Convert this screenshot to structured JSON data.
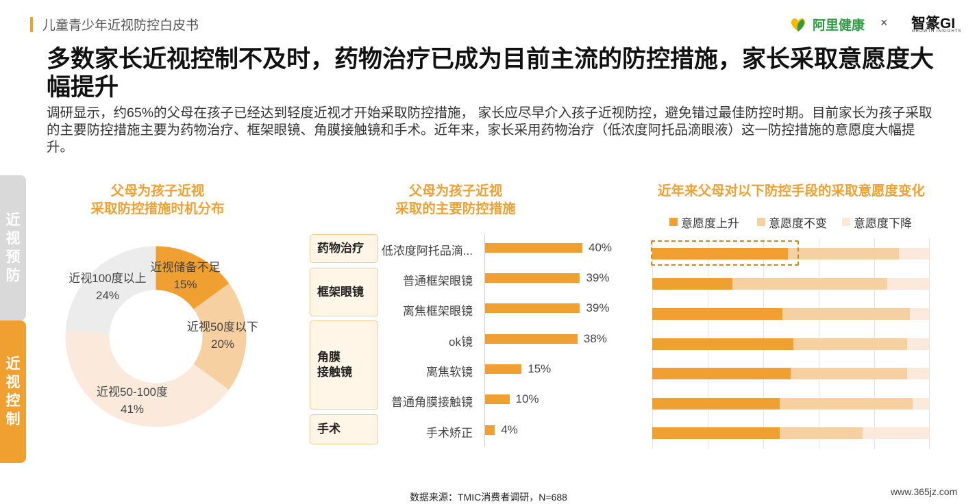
{
  "header": {
    "doc_title": "儿童青少年近视防控白皮书",
    "brand_name": "阿里健康",
    "brand_separator": "×",
    "brand2_name": "智篆GI",
    "brand2_sub": "GROWTH INSIGHTS"
  },
  "headline": "多数家长近视控制不及时，药物治疗已成为目前主流的防控措施，家长采取意愿度大幅提升",
  "intro": "调研显示，约65%的父母在孩子已经达到轻度近视才开始采取防控措施， 家长应尽早介入孩子近视防控，避免错过最佳防控时期。目前家长为孩子采取的主要防控措施主要为药物治疗、框架眼镜、角膜接触镜和手术。近年来，家长采用药物治疗（低浓度阿托品滴眼液）这一防控措施的意愿度大幅提升。",
  "side_tabs": {
    "prevent": "近视预防",
    "control": "近视控制"
  },
  "colors": {
    "accent": "#f0a030",
    "light": "#f6d0a0",
    "pale": "#fbeadb",
    "grey": "#ececec",
    "brand_green": "#2e9a43"
  },
  "chart_data": [
    {
      "type": "pie",
      "title_line1": "父母为孩子近视",
      "title_line2": "采取防控措施时机分布",
      "slices": [
        {
          "label": "近视储备不足",
          "value": 15,
          "display": "15%",
          "color": "#f0a030"
        },
        {
          "label": "近视50度以下",
          "value": 20,
          "display": "20%",
          "color": "#f6d0a0"
        },
        {
          "label": "近视50-100度",
          "value": 41,
          "display": "41%",
          "color": "#fbeadb"
        },
        {
          "label": "近视100度以上",
          "value": 24,
          "display": "24%",
          "color": "#ececec"
        }
      ]
    },
    {
      "type": "bar",
      "title_line1": "父母为孩子近视",
      "title_line2": "采取的主要防控措施",
      "groups": [
        {
          "name": "药物治疗",
          "items": [
            {
              "label": "低浓度阿托品滴...",
              "value": 40,
              "display": "40%"
            }
          ]
        },
        {
          "name": "框架眼镜",
          "items": [
            {
              "label": "普通框架眼镜",
              "value": 39,
              "display": "39%"
            },
            {
              "label": "离焦框架眼镜",
              "value": 39,
              "display": "39%"
            }
          ]
        },
        {
          "name": "角膜接触镜",
          "name_line1": "角膜",
          "name_line2": "接触镜",
          "items": [
            {
              "label": "ok镜",
              "value": 38,
              "display": "38%"
            },
            {
              "label": "离焦软镜",
              "value": 15,
              "display": "15%"
            },
            {
              "label": "普通角膜接触镜",
              "value": 10,
              "display": "10%"
            }
          ]
        },
        {
          "name": "手术",
          "items": [
            {
              "label": "手术矫正",
              "value": 4,
              "display": "4%"
            }
          ]
        }
      ]
    },
    {
      "type": "bar",
      "stacked": "100%",
      "title": "近年来父母对以下防控手段的采取意愿度变化",
      "legend": [
        "意愿度上升",
        "意愿度不变",
        "意愿度下降"
      ],
      "legend_position": "top",
      "grid": true,
      "series": [
        {
          "name": "意愿度上升",
          "values": [
            49,
            29,
            47,
            51,
            50,
            46,
            46
          ]
        },
        {
          "name": "意愿度不变",
          "values": [
            40,
            56,
            46,
            41,
            42,
            48,
            30
          ]
        },
        {
          "name": "意愿度下降",
          "values": [
            11,
            15,
            7,
            8,
            8,
            6,
            24
          ]
        }
      ]
    }
  ],
  "source": "数据来源：TMIC消费者调研，N=688",
  "watermark": "www.365jz.com"
}
